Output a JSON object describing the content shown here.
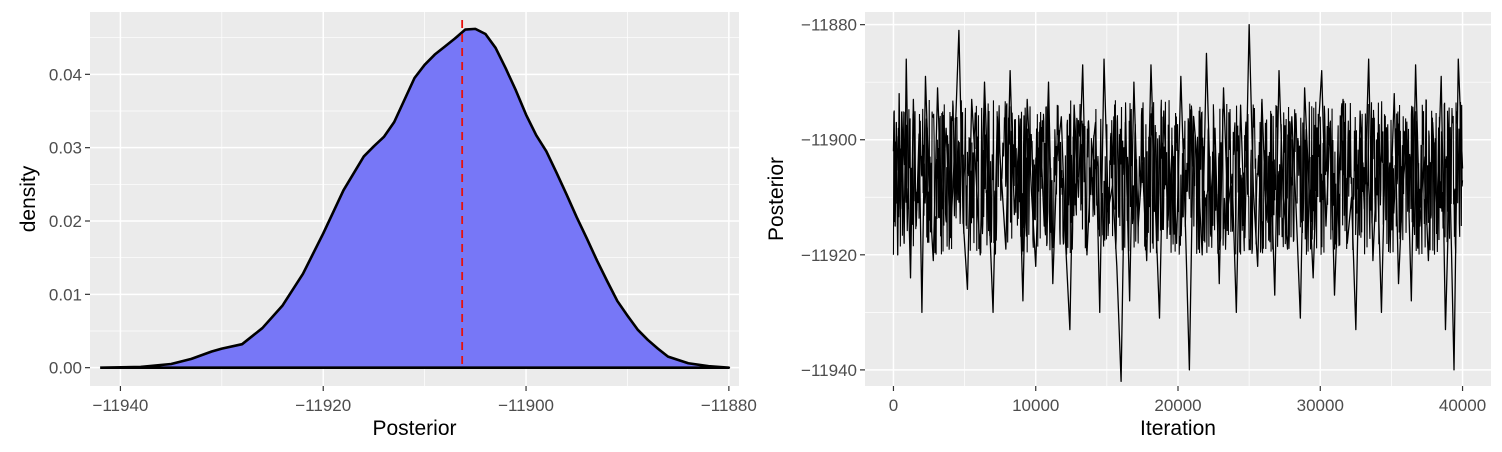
{
  "colors": {
    "panel_bg": "#ebebeb",
    "grid": "#ffffff",
    "density_fill": "#7777f7",
    "density_line": "#000000",
    "vline": "#e8120c",
    "trace_line": "#000000",
    "tick_text": "#4d4d4d"
  },
  "chart_data": [
    {
      "type": "area",
      "xlabel": "Posterior",
      "ylabel": "density",
      "xlim": [
        -11943,
        -11879
      ],
      "ylim": [
        -0.0025,
        0.0485
      ],
      "x_ticks": [
        -11940,
        -11920,
        -11900,
        -11880
      ],
      "x_tick_labels": [
        "−11940",
        "−11920",
        "−11900",
        "−11880"
      ],
      "y_ticks": [
        0.0,
        0.01,
        0.02,
        0.03,
        0.04
      ],
      "y_tick_labels": [
        "0.00",
        "0.01",
        "0.02",
        "0.03",
        "0.04"
      ],
      "grid": true,
      "vline_x": -11906.3,
      "x": [
        -11942,
        -11938,
        -11935,
        -11933,
        -11931,
        -11930,
        -11928,
        -11926,
        -11924,
        -11922,
        -11920,
        -11918,
        -11916,
        -11915,
        -11914,
        -11913,
        -11912,
        -11911,
        -11910,
        -11909,
        -11908,
        -11907,
        -11906,
        -11905,
        -11904,
        -11903,
        -11902,
        -11901,
        -11900,
        -11899,
        -11898,
        -11897,
        -11896,
        -11895,
        -11894,
        -11893,
        -11892,
        -11891,
        -11890,
        -11889,
        -11888,
        -11887,
        -11886,
        -11884,
        -11882,
        -11880
      ],
      "y": [
        0.0,
        0.0001,
        0.0005,
        0.0012,
        0.0022,
        0.0026,
        0.0032,
        0.0054,
        0.0085,
        0.0128,
        0.0183,
        0.0242,
        0.0288,
        0.0302,
        0.0315,
        0.0335,
        0.0365,
        0.0395,
        0.0413,
        0.0427,
        0.0438,
        0.0449,
        0.0461,
        0.0462,
        0.0455,
        0.0436,
        0.0408,
        0.0378,
        0.0345,
        0.0317,
        0.0295,
        0.0266,
        0.0236,
        0.0205,
        0.0176,
        0.0146,
        0.0118,
        0.0091,
        0.0071,
        0.0052,
        0.0038,
        0.0026,
        0.0015,
        0.0006,
        0.0002,
        0.0
      ]
    },
    {
      "type": "line",
      "xlabel": "Iteration",
      "ylabel": "Posterior",
      "xlim": [
        -2000,
        42000
      ],
      "ylim": [
        -11942.8,
        -11877.8
      ],
      "x_ticks": [
        0,
        10000,
        20000,
        30000,
        40000
      ],
      "x_tick_labels": [
        "0",
        "10000",
        "20000",
        "30000",
        "40000"
      ],
      "y_ticks": [
        -11880,
        -11900,
        -11920,
        -11940
      ],
      "y_tick_labels": [
        "−11880",
        "−11900",
        "−11920",
        "−11940"
      ],
      "grid": true,
      "trace_summary": {
        "n_iterations": 40000,
        "center": -11906.3,
        "band_upper": -11893,
        "band_lower": -11920,
        "observed_max": -11880,
        "observed_min": -11942
      },
      "x": [
        0,
        50,
        120,
        200,
        300,
        400,
        500,
        620,
        750,
        900,
        1050,
        1200,
        1400,
        1600,
        1800,
        2000,
        2250,
        2500,
        2800,
        3100,
        3400,
        3700,
        4000,
        4300,
        4600,
        4900,
        5200,
        5500,
        5800,
        6100,
        6400,
        6700,
        7000,
        7300,
        7600,
        7900,
        8200,
        8500,
        8800,
        9100,
        9400,
        9700,
        10000,
        10300,
        10600,
        10900,
        11200,
        11500,
        11800,
        12100,
        12400,
        12700,
        13000,
        13300,
        13600,
        13900,
        14200,
        14500,
        14800,
        15100,
        15400,
        15700,
        16000,
        16300,
        16600,
        16900,
        17200,
        17500,
        17800,
        18100,
        18400,
        18700,
        19000,
        19300,
        19600,
        19900,
        20200,
        20500,
        20800,
        21100,
        21400,
        21700,
        22000,
        22300,
        22600,
        22900,
        23200,
        23500,
        23800,
        24100,
        24400,
        24700,
        25000,
        25300,
        25600,
        25900,
        26200,
        26500,
        26800,
        27100,
        27400,
        27700,
        28000,
        28300,
        28600,
        28900,
        29200,
        29500,
        29800,
        30100,
        30400,
        30700,
        31000,
        31300,
        31600,
        31900,
        32200,
        32500,
        32800,
        33100,
        33400,
        33700,
        34000,
        34300,
        34600,
        34900,
        35200,
        35500,
        35800,
        36100,
        36400,
        36700,
        37000,
        37300,
        37600,
        37900,
        38200,
        38500,
        38800,
        39100,
        39400,
        39700,
        40000
      ],
      "y": [
        -11902,
        -11895,
        -11915,
        -11897,
        -11920,
        -11892,
        -11912,
        -11900,
        -11918,
        -11886,
        -11909,
        -11924,
        -11893,
        -11915,
        -11899,
        -11930,
        -11889,
        -11908,
        -11921,
        -11891,
        -11912,
        -11898,
        -11917,
        -11902,
        -11881,
        -11914,
        -11926,
        -11893,
        -11906,
        -11920,
        -11890,
        -11911,
        -11930,
        -11896,
        -11907,
        -11919,
        -11888,
        -11913,
        -11901,
        -11928,
        -11893,
        -11909,
        -11922,
        -11897,
        -11915,
        -11890,
        -11925,
        -11903,
        -11896,
        -11918,
        -11933,
        -11894,
        -11910,
        -11887,
        -11920,
        -11904,
        -11897,
        -11930,
        -11886,
        -11912,
        -11908,
        -11922,
        -11942,
        -11897,
        -11928,
        -11890,
        -11915,
        -11904,
        -11921,
        -11887,
        -11911,
        -11931,
        -11895,
        -11914,
        -11901,
        -11918,
        -11889,
        -11913,
        -11940,
        -11896,
        -11905,
        -11920,
        -11885,
        -11911,
        -11898,
        -11925,
        -11891,
        -11912,
        -11906,
        -11930,
        -11894,
        -11917,
        -11880,
        -11909,
        -11922,
        -11893,
        -11914,
        -11903,
        -11927,
        -11888,
        -11910,
        -11919,
        -11896,
        -11912,
        -11931,
        -11891,
        -11908,
        -11924,
        -11901,
        -11888,
        -11915,
        -11897,
        -11927,
        -11906,
        -11893,
        -11918,
        -11910,
        -11933,
        -11895,
        -11912,
        -11886,
        -11921,
        -11904,
        -11930,
        -11898,
        -11914,
        -11892,
        -11925,
        -11908,
        -11900,
        -11928,
        -11887,
        -11915,
        -11903,
        -11921,
        -11897,
        -11912,
        -11889,
        -11933,
        -11905,
        -11940,
        -11886,
        -11905
      ]
    }
  ]
}
